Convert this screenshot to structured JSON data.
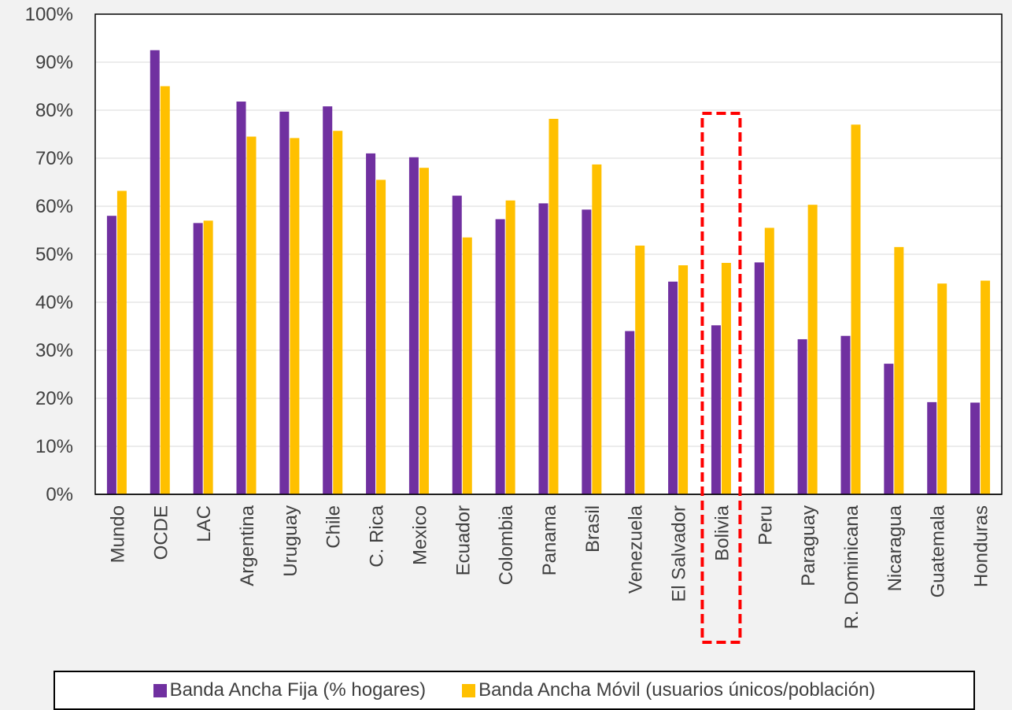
{
  "chart_data": {
    "type": "bar",
    "title": "",
    "xlabel": "",
    "ylabel": "",
    "ylim": [
      0,
      100
    ],
    "yticks": [
      "0%",
      "10%",
      "20%",
      "30%",
      "40%",
      "50%",
      "60%",
      "70%",
      "80%",
      "90%",
      "100%"
    ],
    "grid": true,
    "legend_position": "bottom",
    "categories": [
      "Mundo",
      "OCDE",
      "LAC",
      "Argentina",
      "Uruguay",
      "Chile",
      "C. Rica",
      "Mexico",
      "Ecuador",
      "Colombia",
      "Panama",
      "Brasil",
      "Venezuela",
      "El Salvador",
      "Bolivia",
      "Peru",
      "Paraguay",
      "R. Dominicana",
      "Nicaragua",
      "Guatemala",
      "Honduras"
    ],
    "series": [
      {
        "name": "Banda Ancha Fija (% hogares)",
        "color": "#7030a0",
        "values": [
          58,
          92.5,
          56.5,
          81.8,
          79.7,
          80.8,
          71,
          70.2,
          62.2,
          57.3,
          60.6,
          59.3,
          34,
          44.3,
          35.2,
          48.3,
          32.3,
          33,
          27.2,
          19.2,
          19.1
        ]
      },
      {
        "name": "Banda Ancha Móvil (usuarios únicos/población)",
        "color": "#ffc000",
        "values": [
          63.2,
          85,
          57,
          74.5,
          74.2,
          75.7,
          65.5,
          68,
          53.5,
          61.2,
          78.2,
          68.7,
          51.8,
          47.7,
          48.2,
          55.5,
          60.3,
          77,
          51.5,
          43.9,
          44.5
        ]
      }
    ],
    "highlight_category": "Bolivia",
    "highlight_color": "#ff0000"
  }
}
